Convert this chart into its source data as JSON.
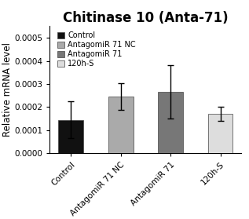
{
  "title": "Chitinase 10 (Anta-71)",
  "ylabel": "Relative mRNA level",
  "categories": [
    "Control",
    "AntagomiR 71 NC",
    "AntagomiR 71",
    "120h-S"
  ],
  "values": [
    0.000145,
    0.000245,
    0.000265,
    0.000172
  ],
  "errors": [
    8e-05,
    5.8e-05,
    0.000115,
    3e-05
  ],
  "bar_colors": [
    "#111111",
    "#aaaaaa",
    "#777777",
    "#dddddd"
  ],
  "legend_labels": [
    "Control",
    "AntagomiR 71 NC",
    "AntagomiR 71",
    "120h-S"
  ],
  "legend_colors": [
    "#111111",
    "#aaaaaa",
    "#777777",
    "#dddddd"
  ],
  "ylim": [
    0,
    0.00055
  ],
  "yticks": [
    0.0,
    0.0001,
    0.0002,
    0.0003,
    0.0004,
    0.0005
  ],
  "title_fontsize": 12,
  "label_fontsize": 8.5,
  "tick_fontsize": 7.5,
  "legend_fontsize": 7,
  "bar_width": 0.5,
  "background_color": "#ffffff",
  "capsize": 3,
  "edge_color": "#444444"
}
